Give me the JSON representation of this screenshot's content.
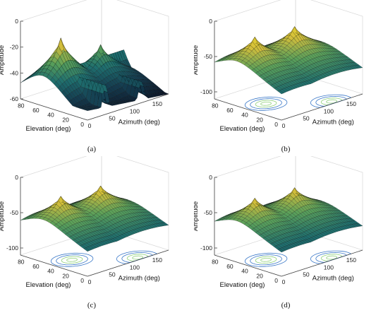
{
  "chart_data": [
    {
      "type": "surface",
      "caption": "(a)",
      "zlabel": "Amplitude",
      "xlabel": "Azimuth (deg)",
      "ylabel": "Elevation (deg)",
      "zticks": [
        "0",
        "-20",
        "-40",
        "-60"
      ],
      "zlim": [
        -60,
        0
      ],
      "azimuth_ticks": [
        "0",
        "50",
        "100",
        "150"
      ],
      "elevation_ticks": [
        "80",
        "60",
        "40",
        "20",
        "0"
      ],
      "azimuth_lim": [
        0,
        180
      ],
      "elevation_lim": [
        0,
        90
      ],
      "peaks": [
        {
          "azimuth": 40,
          "elevation": 60,
          "amplitude": -2
        },
        {
          "azimuth": 120,
          "elevation": 55,
          "amplitude": -18
        }
      ],
      "floor": -60,
      "contour_projection": false
    },
    {
      "type": "surface",
      "caption": "(b)",
      "zlabel": "Amplitude",
      "xlabel": "Azimuth (deg)",
      "ylabel": "Elevation (deg)",
      "zticks": [
        "0",
        "-50",
        "-100"
      ],
      "zlim": [
        -110,
        0
      ],
      "azimuth_ticks": [
        "0",
        "50",
        "100",
        "150"
      ],
      "elevation_ticks": [
        "80",
        "60",
        "40",
        "20",
        "0"
      ],
      "azimuth_lim": [
        0,
        180
      ],
      "elevation_lim": [
        0,
        90
      ],
      "peaks": [
        {
          "azimuth": 40,
          "elevation": 60,
          "amplitude": -10
        },
        {
          "azimuth": 120,
          "elevation": 55,
          "amplitude": -10
        }
      ],
      "floor": -110,
      "contour_projection": true
    },
    {
      "type": "surface",
      "caption": "(c)",
      "zlabel": "Amplitude",
      "xlabel": "Azimuth (deg)",
      "ylabel": "Elevation (deg)",
      "zticks": [
        "0",
        "-50",
        "-100"
      ],
      "zlim": [
        -110,
        0
      ],
      "azimuth_ticks": [
        "0",
        "50",
        "100",
        "150"
      ],
      "elevation_ticks": [
        "80",
        "60",
        "40",
        "20",
        "0"
      ],
      "azimuth_lim": [
        0,
        180
      ],
      "elevation_lim": [
        0,
        90
      ],
      "peaks": [
        {
          "azimuth": 40,
          "elevation": 60,
          "amplitude": -15
        },
        {
          "azimuth": 120,
          "elevation": 55,
          "amplitude": -15
        }
      ],
      "floor": -110,
      "contour_projection": true
    },
    {
      "type": "surface",
      "caption": "(d)",
      "zlabel": "Amplitude",
      "xlabel": "Azimuth (deg)",
      "ylabel": "Elevation (deg)",
      "zticks": [
        "0",
        "-50",
        "-100"
      ],
      "zlim": [
        -110,
        0
      ],
      "azimuth_ticks": [
        "0",
        "50",
        "100",
        "150"
      ],
      "elevation_ticks": [
        "80",
        "60",
        "40",
        "20",
        "0"
      ],
      "azimuth_lim": [
        0,
        180
      ],
      "elevation_lim": [
        0,
        90
      ],
      "peaks": [
        {
          "azimuth": 40,
          "elevation": 60,
          "amplitude": -18
        },
        {
          "azimuth": 120,
          "elevation": 55,
          "amplitude": -18
        }
      ],
      "floor": -110,
      "contour_projection": true
    }
  ]
}
